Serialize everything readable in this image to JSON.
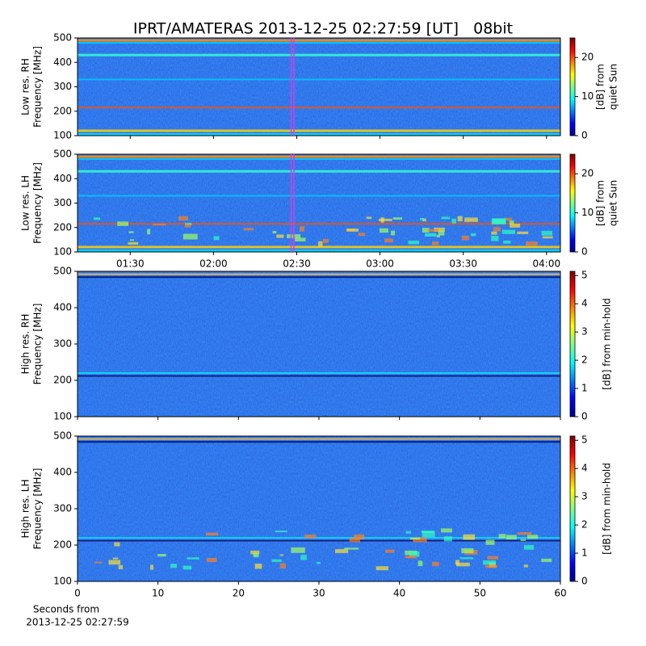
{
  "chart_data": [
    {
      "type": "heatmap",
      "title": "IPRT/AMATERAS 2013-12-25 02:27:59 [UT]   08bit",
      "ylabel": [
        "Low res. RH",
        "Frequency [MHz]"
      ],
      "xlim": [
        "01:11",
        "04:05"
      ],
      "ylim": [
        100,
        500
      ],
      "yticks": [
        100,
        200,
        300,
        400,
        500
      ],
      "highlight": [
        "02:27:59",
        "02:28:59"
      ],
      "highlight_color": "#cc44dd",
      "colorbar": {
        "label": [
          "[dB] from",
          "quiet Sun"
        ],
        "lim": [
          0,
          25
        ],
        "ticks": [
          0,
          10,
          20
        ],
        "colormap": "jet"
      }
    },
    {
      "type": "heatmap",
      "ylabel": [
        "Low res. LH",
        "Frequency [MHz]"
      ],
      "xlim": [
        "01:11",
        "04:05"
      ],
      "xticks": [
        "01:30",
        "02:00",
        "02:30",
        "03:00",
        "03:30",
        "04:00"
      ],
      "ylim": [
        100,
        500
      ],
      "yticks": [
        100,
        200,
        300,
        400,
        500
      ],
      "highlight": [
        "02:27:59",
        "02:28:59"
      ],
      "highlight_color": "#cc44dd",
      "colorbar": {
        "label": [
          "[dB] from",
          "quiet Sun"
        ],
        "lim": [
          0,
          25
        ],
        "ticks": [
          0,
          10,
          20
        ],
        "colormap": "jet"
      }
    },
    {
      "type": "heatmap",
      "ylabel": [
        "High res. RH",
        "Frequency [MHz]"
      ],
      "xlim": [
        0,
        60
      ],
      "ylim": [
        100,
        500
      ],
      "yticks": [
        100,
        200,
        300,
        400,
        500
      ],
      "colorbar": {
        "label": [
          "[dB] from min-hold"
        ],
        "lim": [
          0,
          5.15
        ],
        "ticks": [
          0,
          1,
          2,
          3,
          4,
          5
        ],
        "colormap": "jet"
      }
    },
    {
      "type": "heatmap",
      "ylabel": [
        "High res. LH",
        "Frequency [MHz]"
      ],
      "xlabel": [
        "Seconds from",
        "2013-12-25 02:27:59"
      ],
      "xlim": [
        0,
        60
      ],
      "xticks": [
        0,
        10,
        20,
        30,
        40,
        50,
        60
      ],
      "ylim": [
        100,
        500
      ],
      "yticks": [
        100,
        200,
        300,
        400,
        500
      ],
      "colorbar": {
        "label": [
          "[dB] from min-hold"
        ],
        "lim": [
          0,
          5.15
        ],
        "ticks": [
          0,
          1,
          2,
          3,
          4,
          5
        ],
        "colormap": "jet"
      }
    }
  ]
}
